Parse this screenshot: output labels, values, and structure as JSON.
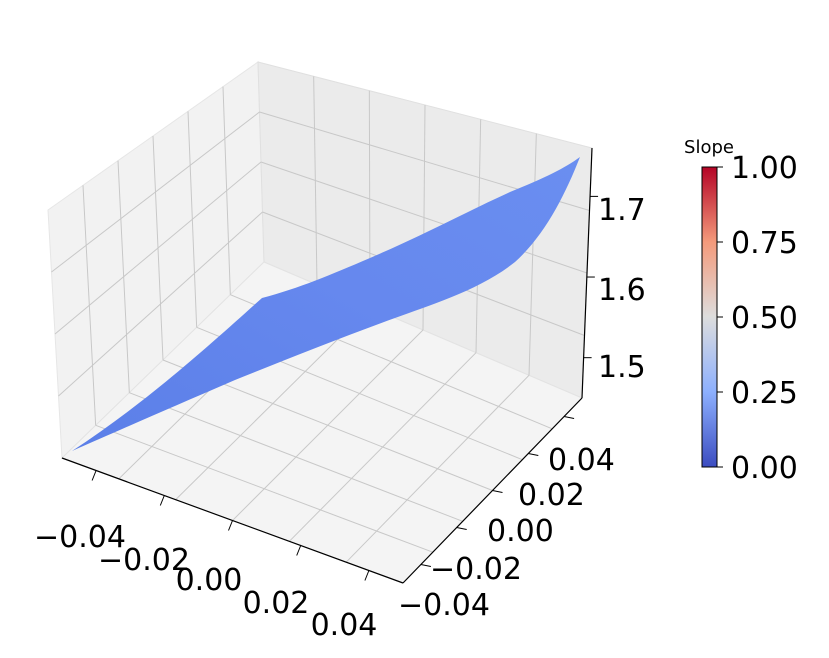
{
  "chart_data": {
    "type": "surface",
    "title": "",
    "xlabel": "",
    "ylabel": "",
    "zlabel": "",
    "xlim": [
      -0.05,
      0.05
    ],
    "ylim": [
      -0.05,
      0.05
    ],
    "zlim": [
      1.45,
      1.76
    ],
    "x_ticks": [
      "−0.04",
      "−0.02",
      "0.00",
      "0.02",
      "0.04"
    ],
    "y_ticks": [
      "−0.04",
      "−0.02",
      "0.00",
      "0.02",
      "0.04"
    ],
    "z_ticks": [
      "1.5",
      "1.6",
      "1.7"
    ],
    "surface": {
      "x": [
        -0.05,
        0.05
      ],
      "y": [
        -0.05,
        0.05
      ],
      "z_corners": {
        "x_min_y_min": 1.45,
        "x_max_y_min": 1.58,
        "x_min_y_max": 1.6,
        "x_max_y_max": 1.76
      },
      "colormap": "coolwarm",
      "color": "#6688ee"
    },
    "colorbar": {
      "label": "Slope",
      "colormap": "coolwarm",
      "range": [
        0,
        1
      ],
      "ticks": [
        "0.00",
        "0.25",
        "0.50",
        "0.75",
        "1.00"
      ],
      "colors": [
        "#3b4cc0",
        "#8db0fe",
        "#dddddd",
        "#f49a7b",
        "#b40426"
      ]
    },
    "grid": true,
    "pane_color": "#f2f2f2"
  }
}
